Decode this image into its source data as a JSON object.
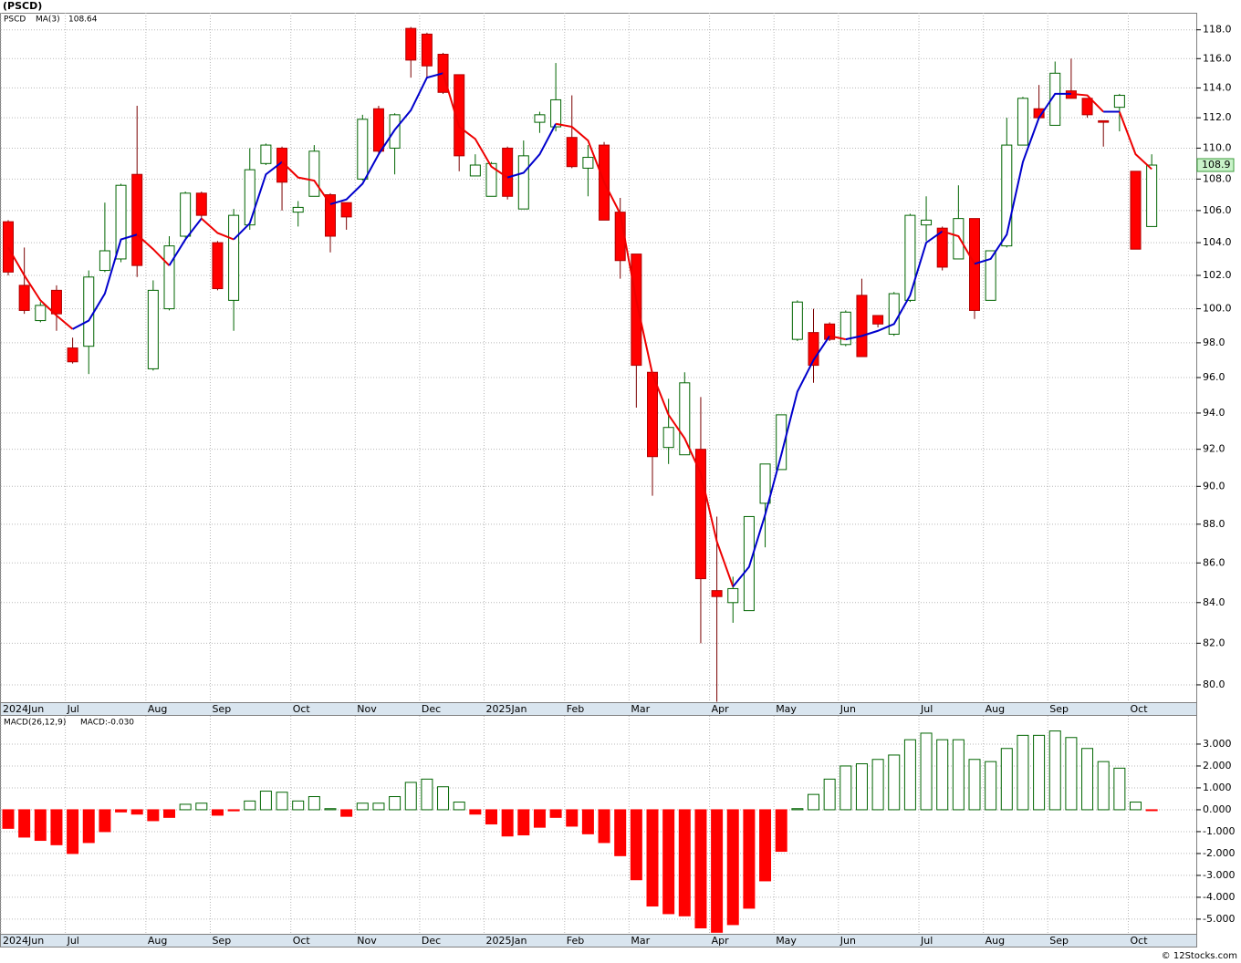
{
  "chart_data": [
    {
      "type": "candlestick",
      "title": "(PSCD)",
      "name": "PSCD",
      "categories": [
        "2024Jun",
        null,
        null,
        null,
        "Jul",
        null,
        null,
        null,
        null,
        "Aug",
        null,
        null,
        null,
        "Sep",
        null,
        null,
        null,
        null,
        "Oct",
        null,
        null,
        null,
        "Nov",
        null,
        null,
        null,
        "Dec",
        null,
        null,
        null,
        "2025Jan",
        null,
        null,
        null,
        null,
        "Feb",
        null,
        null,
        null,
        "Mar",
        null,
        null,
        null,
        null,
        "Apr",
        null,
        null,
        null,
        "May",
        null,
        null,
        null,
        "Jun",
        null,
        null,
        null,
        null,
        "Jul",
        null,
        null,
        null,
        "Aug",
        null,
        null,
        null,
        "Sep",
        null,
        null,
        null,
        null,
        "Oct",
        null
      ],
      "open": [
        105.3,
        101.4,
        99.3,
        101.1,
        97.7,
        97.8,
        102.3,
        103.0,
        108.3,
        96.5,
        100.0,
        104.4,
        107.1,
        104.0,
        100.5,
        105.1,
        109.0,
        110.0,
        105.9,
        106.9,
        107.0,
        106.5,
        108.0,
        112.6,
        110.0,
        118.1,
        117.7,
        116.3,
        114.9,
        108.2,
        106.9,
        110.0,
        106.1,
        111.7,
        111.4,
        110.7,
        108.7,
        110.2,
        105.9,
        103.3,
        96.3,
        92.1,
        91.7,
        92.0,
        84.6,
        84.0,
        83.6,
        89.1,
        90.9,
        98.2,
        98.6,
        99.1,
        97.9,
        100.8,
        99.6,
        98.5,
        100.5,
        105.1,
        104.9,
        103.0,
        105.5,
        100.5,
        103.8,
        110.2,
        112.6,
        111.5,
        113.8,
        113.3,
        111.8,
        112.7,
        108.5,
        105.0
      ],
      "high": [
        105.4,
        103.7,
        100.4,
        101.4,
        98.3,
        102.3,
        106.5,
        107.7,
        112.8,
        101.7,
        104.4,
        107.2,
        107.2,
        104.1,
        106.1,
        110.0,
        110.3,
        110.1,
        106.6,
        110.2,
        107.1,
        106.5,
        112.2,
        112.8,
        112.3,
        118.2,
        117.8,
        116.4,
        114.9,
        109.6,
        109.1,
        110.1,
        110.5,
        112.4,
        115.7,
        113.5,
        110.2,
        110.4,
        106.8,
        103.3,
        96.3,
        94.8,
        96.3,
        94.9,
        88.4,
        85.3,
        88.4,
        91.2,
        93.9,
        100.5,
        100.0,
        99.2,
        99.9,
        101.8,
        99.6,
        101.0,
        105.8,
        106.9,
        105.0,
        107.6,
        105.5,
        103.5,
        112.0,
        113.4,
        114.2,
        115.8,
        116.0,
        113.3,
        111.8,
        113.6,
        108.5,
        109.6
      ],
      "low": [
        102.0,
        99.7,
        99.2,
        98.7,
        96.8,
        96.2,
        102.2,
        102.8,
        101.9,
        96.4,
        99.9,
        104.3,
        105.5,
        101.1,
        98.7,
        104.8,
        108.9,
        106.0,
        105.0,
        106.9,
        103.4,
        104.8,
        107.9,
        109.6,
        108.3,
        114.7,
        114.7,
        113.6,
        108.5,
        108.2,
        106.9,
        106.7,
        106.1,
        111.0,
        111.1,
        108.7,
        106.9,
        105.4,
        101.8,
        94.3,
        89.5,
        91.2,
        91.7,
        82.0,
        79.2,
        83.0,
        83.6,
        86.8,
        90.9,
        98.1,
        95.7,
        98.1,
        97.8,
        97.2,
        98.9,
        98.4,
        100.4,
        104.1,
        102.3,
        103.0,
        99.4,
        100.5,
        103.7,
        110.2,
        111.9,
        111.5,
        113.3,
        112.0,
        110.1,
        111.1,
        103.6,
        105.0
      ],
      "close": [
        102.2,
        99.9,
        100.2,
        99.7,
        96.9,
        101.9,
        103.5,
        107.6,
        102.6,
        101.1,
        103.8,
        107.1,
        105.7,
        101.2,
        105.7,
        108.6,
        110.2,
        107.8,
        106.2,
        109.8,
        104.4,
        105.6,
        111.9,
        109.8,
        112.2,
        115.9,
        115.5,
        113.7,
        109.5,
        108.9,
        109.0,
        106.9,
        109.5,
        112.2,
        113.2,
        108.8,
        109.4,
        105.4,
        102.9,
        96.7,
        91.6,
        93.2,
        95.7,
        85.2,
        84.3,
        84.7,
        88.4,
        91.2,
        93.9,
        100.4,
        96.7,
        98.2,
        99.8,
        97.2,
        99.1,
        100.9,
        105.7,
        105.4,
        102.5,
        105.5,
        99.9,
        103.5,
        110.2,
        113.3,
        112.0,
        115.0,
        113.3,
        112.2,
        111.7,
        113.5,
        103.6,
        108.9
      ],
      "up_color": "#006400",
      "down_color": "#ff0000",
      "ma": {
        "name": "MA(3)",
        "last": 108.64,
        "up_color": "#0000cc",
        "down_color": "#ee0000",
        "values": [
          103.7,
          102.0,
          100.5,
          99.6,
          98.8,
          99.3,
          100.9,
          104.2,
          104.5,
          103.6,
          102.6,
          104.2,
          105.5,
          104.6,
          104.2,
          105.2,
          108.3,
          109.1,
          108.1,
          107.9,
          106.4,
          106.7,
          107.7,
          109.6,
          111.2,
          112.5,
          114.7,
          115.0,
          111.4,
          110.6,
          108.8,
          108.1,
          108.4,
          109.6,
          111.6,
          111.4,
          110.5,
          107.8,
          105.8,
          100.5,
          96.2,
          93.9,
          92.6,
          90.7,
          87.1,
          84.8,
          85.8,
          88.5,
          91.7,
          95.2,
          97.0,
          98.4,
          98.2,
          98.4,
          98.7,
          99.1,
          100.8,
          104.0,
          104.7,
          104.4,
          102.7,
          103.0,
          104.5,
          109.1,
          112.0,
          113.6,
          113.6,
          113.5,
          112.4,
          112.4,
          109.6,
          108.64
        ]
      },
      "last_price": 108.9,
      "log_scale": true,
      "grid": true,
      "ylim": [
        79.18,
        119.2
      ],
      "yticks": [
        {
          "value": 80,
          "label": "80.0"
        },
        {
          "value": 82,
          "label": "82.0"
        },
        {
          "value": 84,
          "label": "84.0"
        },
        {
          "value": 86,
          "label": "86.0"
        },
        {
          "value": 88,
          "label": "88.0"
        },
        {
          "value": 90,
          "label": "90.0"
        },
        {
          "value": 92,
          "label": "92.0"
        },
        {
          "value": 94,
          "label": "94.0"
        },
        {
          "value": 96,
          "label": "96.0"
        },
        {
          "value": 98,
          "label": "98.0"
        },
        {
          "value": 100,
          "label": "100.0"
        },
        {
          "value": 102,
          "label": "102.0"
        },
        {
          "value": 104,
          "label": "104.0"
        },
        {
          "value": 106,
          "label": "106.0"
        },
        {
          "value": 108,
          "label": "108.0"
        },
        {
          "value": 110,
          "label": "110.0"
        },
        {
          "value": 112,
          "label": "112.0"
        },
        {
          "value": 114,
          "label": "114.0"
        },
        {
          "value": 116,
          "label": "116.0"
        },
        {
          "value": 118,
          "label": "118.0"
        }
      ]
    },
    {
      "type": "bar",
      "title": "MACD(26,12,9)",
      "value_label": "MACD:-0.030",
      "values": [
        -0.85,
        -1.25,
        -1.4,
        -1.6,
        -2.0,
        -1.5,
        -1.0,
        -0.1,
        -0.2,
        -0.5,
        -0.35,
        0.25,
        0.3,
        -0.25,
        -0.05,
        0.4,
        0.85,
        0.8,
        0.4,
        0.6,
        0.05,
        -0.3,
        0.3,
        0.3,
        0.6,
        1.25,
        1.4,
        1.05,
        0.35,
        -0.2,
        -0.65,
        -1.2,
        -1.15,
        -0.8,
        -0.35,
        -0.75,
        -1.1,
        -1.5,
        -2.1,
        -3.2,
        -4.4,
        -4.75,
        -4.85,
        -5.4,
        -5.6,
        -5.25,
        -4.5,
        -3.25,
        -1.9,
        0.05,
        0.7,
        1.4,
        2.0,
        2.1,
        2.3,
        2.5,
        3.2,
        3.5,
        3.2,
        3.2,
        2.3,
        2.2,
        2.8,
        3.4,
        3.4,
        3.6,
        3.3,
        2.8,
        2.2,
        1.9,
        0.35,
        -0.03
      ],
      "up_color": "#006400",
      "down_color": "#ff0000",
      "grid": true,
      "ylim": [
        -5.67,
        4.29
      ],
      "yticks": [
        {
          "value": -5,
          "label": "-5.000"
        },
        {
          "value": -4,
          "label": "-4.000"
        },
        {
          "value": -3,
          "label": "-3.000"
        },
        {
          "value": -2,
          "label": "-2.000"
        },
        {
          "value": -1,
          "label": "-1.000"
        },
        {
          "value": 0,
          "label": "0.000"
        },
        {
          "value": 1,
          "label": "1.000"
        },
        {
          "value": 2,
          "label": "2.000"
        },
        {
          "value": 3,
          "label": "3.000"
        }
      ]
    }
  ],
  "footer": "© 12Stocks.com"
}
